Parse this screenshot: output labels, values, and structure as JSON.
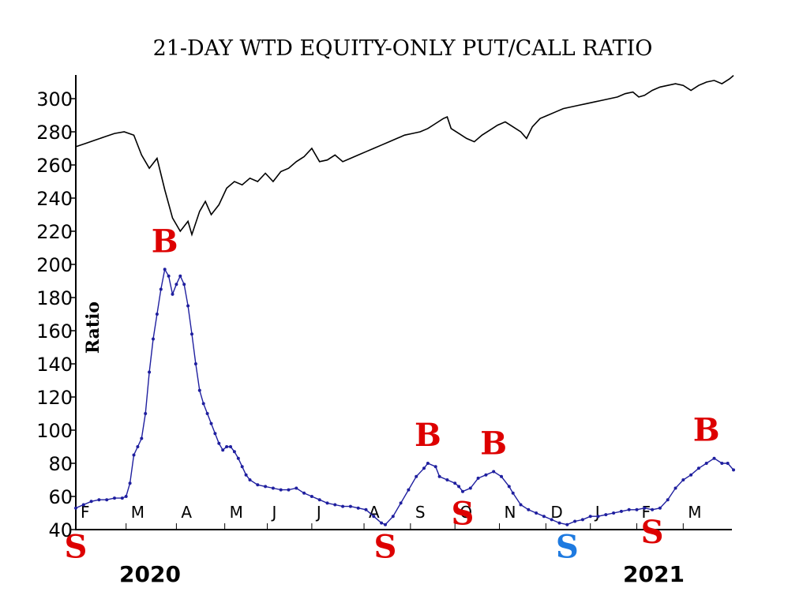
{
  "chart_data": {
    "type": "line",
    "title": "21-DAY WTD EQUITY-ONLY PUT/CALL RATIO",
    "ylabel": "Ratio",
    "ylim": [
      40,
      310
    ],
    "y_ticks": [
      40,
      60,
      80,
      100,
      120,
      140,
      160,
      180,
      200,
      220,
      240,
      260,
      280,
      300
    ],
    "y_tick_labels": [
      "40",
      "60",
      "80",
      "100",
      "120",
      "140",
      "160",
      "180",
      "200",
      "220",
      "240",
      "260",
      "280",
      "300"
    ],
    "x_month_labels": [
      "F",
      "M",
      "A",
      "M",
      "J",
      "J",
      "A",
      "S",
      "O",
      "N",
      "D",
      "J",
      "F",
      "M"
    ],
    "x_year_labels": [
      "2020",
      "2021"
    ],
    "grid": false,
    "series": [
      {
        "color": "#000000",
        "style": "line",
        "points": [
          [
            0,
            271
          ],
          [
            5,
            273
          ],
          [
            10,
            275
          ],
          [
            15,
            277
          ],
          [
            20,
            279
          ],
          [
            25,
            280
          ],
          [
            30,
            278
          ],
          [
            34,
            266
          ],
          [
            38,
            258
          ],
          [
            42,
            264
          ],
          [
            46,
            245
          ],
          [
            50,
            228
          ],
          [
            54,
            220
          ],
          [
            58,
            226
          ],
          [
            60,
            218
          ],
          [
            64,
            232
          ],
          [
            67,
            238
          ],
          [
            70,
            230
          ],
          [
            74,
            236
          ],
          [
            78,
            246
          ],
          [
            82,
            250
          ],
          [
            86,
            248
          ],
          [
            90,
            252
          ],
          [
            94,
            250
          ],
          [
            98,
            255
          ],
          [
            102,
            250
          ],
          [
            106,
            256
          ],
          [
            110,
            258
          ],
          [
            114,
            262
          ],
          [
            118,
            265
          ],
          [
            122,
            270
          ],
          [
            126,
            262
          ],
          [
            130,
            263
          ],
          [
            134,
            266
          ],
          [
            138,
            262
          ],
          [
            142,
            264
          ],
          [
            146,
            266
          ],
          [
            150,
            268
          ],
          [
            154,
            270
          ],
          [
            158,
            272
          ],
          [
            162,
            274
          ],
          [
            166,
            276
          ],
          [
            170,
            278
          ],
          [
            174,
            279
          ],
          [
            178,
            280
          ],
          [
            182,
            282
          ],
          [
            186,
            285
          ],
          [
            190,
            288
          ],
          [
            192,
            289
          ],
          [
            194,
            282
          ],
          [
            198,
            279
          ],
          [
            202,
            276
          ],
          [
            206,
            274
          ],
          [
            210,
            278
          ],
          [
            214,
            281
          ],
          [
            218,
            284
          ],
          [
            222,
            286
          ],
          [
            226,
            283
          ],
          [
            230,
            280
          ],
          [
            233,
            276
          ],
          [
            236,
            283
          ],
          [
            240,
            288
          ],
          [
            244,
            290
          ],
          [
            248,
            292
          ],
          [
            252,
            294
          ],
          [
            256,
            295
          ],
          [
            260,
            296
          ],
          [
            264,
            297
          ],
          [
            268,
            298
          ],
          [
            272,
            299
          ],
          [
            276,
            300
          ],
          [
            280,
            301
          ],
          [
            284,
            303
          ],
          [
            288,
            304
          ],
          [
            291,
            301
          ],
          [
            294,
            302
          ],
          [
            298,
            305
          ],
          [
            302,
            307
          ],
          [
            306,
            308
          ],
          [
            310,
            309
          ],
          [
            314,
            308
          ],
          [
            318,
            305
          ],
          [
            322,
            308
          ],
          [
            326,
            310
          ],
          [
            330,
            311
          ],
          [
            334,
            309
          ],
          [
            338,
            312
          ],
          [
            340,
            314
          ]
        ]
      },
      {
        "color": "#1f1f9f",
        "style": "dotted-line",
        "points": [
          [
            0,
            53
          ],
          [
            4,
            55
          ],
          [
            8,
            57
          ],
          [
            12,
            58
          ],
          [
            16,
            58
          ],
          [
            20,
            59
          ],
          [
            24,
            59
          ],
          [
            26,
            60
          ],
          [
            28,
            68
          ],
          [
            30,
            85
          ],
          [
            32,
            90
          ],
          [
            34,
            95
          ],
          [
            36,
            110
          ],
          [
            38,
            135
          ],
          [
            40,
            155
          ],
          [
            42,
            170
          ],
          [
            44,
            185
          ],
          [
            46,
            197
          ],
          [
            48,
            193
          ],
          [
            50,
            182
          ],
          [
            52,
            188
          ],
          [
            54,
            193
          ],
          [
            56,
            188
          ],
          [
            58,
            175
          ],
          [
            60,
            158
          ],
          [
            62,
            140
          ],
          [
            64,
            124
          ],
          [
            66,
            116
          ],
          [
            68,
            110
          ],
          [
            70,
            104
          ],
          [
            72,
            98
          ],
          [
            74,
            92
          ],
          [
            76,
            88
          ],
          [
            78,
            90
          ],
          [
            80,
            90
          ],
          [
            82,
            87
          ],
          [
            84,
            83
          ],
          [
            86,
            78
          ],
          [
            88,
            73
          ],
          [
            90,
            70
          ],
          [
            94,
            67
          ],
          [
            98,
            66
          ],
          [
            102,
            65
          ],
          [
            106,
            64
          ],
          [
            110,
            64
          ],
          [
            114,
            65
          ],
          [
            118,
            62
          ],
          [
            122,
            60
          ],
          [
            126,
            58
          ],
          [
            130,
            56
          ],
          [
            134,
            55
          ],
          [
            138,
            54
          ],
          [
            142,
            54
          ],
          [
            146,
            53
          ],
          [
            150,
            52
          ],
          [
            154,
            48
          ],
          [
            158,
            44
          ],
          [
            160,
            43
          ],
          [
            164,
            48
          ],
          [
            168,
            56
          ],
          [
            172,
            64
          ],
          [
            176,
            72
          ],
          [
            180,
            77
          ],
          [
            182,
            80
          ],
          [
            186,
            78
          ],
          [
            188,
            72
          ],
          [
            192,
            70
          ],
          [
            196,
            68
          ],
          [
            198,
            66
          ],
          [
            200,
            63
          ],
          [
            204,
            65
          ],
          [
            208,
            71
          ],
          [
            212,
            73
          ],
          [
            216,
            75
          ],
          [
            220,
            72
          ],
          [
            224,
            66
          ],
          [
            226,
            62
          ],
          [
            230,
            55
          ],
          [
            234,
            52
          ],
          [
            238,
            50
          ],
          [
            242,
            48
          ],
          [
            246,
            46
          ],
          [
            250,
            44
          ],
          [
            254,
            43
          ],
          [
            258,
            45
          ],
          [
            262,
            46
          ],
          [
            266,
            48
          ],
          [
            270,
            48
          ],
          [
            274,
            49
          ],
          [
            278,
            50
          ],
          [
            282,
            51
          ],
          [
            286,
            52
          ],
          [
            290,
            52
          ],
          [
            294,
            53
          ],
          [
            298,
            52
          ],
          [
            302,
            53
          ],
          [
            306,
            58
          ],
          [
            310,
            65
          ],
          [
            314,
            70
          ],
          [
            318,
            73
          ],
          [
            322,
            77
          ],
          [
            326,
            80
          ],
          [
            330,
            83
          ],
          [
            334,
            80
          ],
          [
            337,
            80
          ],
          [
            340,
            76
          ]
        ]
      }
    ],
    "signals": [
      {
        "label": "S",
        "color": "#dd0000",
        "x": 0,
        "y": 43
      },
      {
        "label": "B",
        "color": "#dd0000",
        "x": 46,
        "y": 197
      },
      {
        "label": "S",
        "color": "#dd0000",
        "x": 160,
        "y": 43
      },
      {
        "label": "B",
        "color": "#dd0000",
        "x": 182,
        "y": 80
      },
      {
        "label": "S",
        "color": "#dd0000",
        "x": 200,
        "y": 63
      },
      {
        "label": "B",
        "color": "#dd0000",
        "x": 216,
        "y": 75
      },
      {
        "label": "S",
        "color": "#1e7ae0",
        "x": 254,
        "y": 43
      },
      {
        "label": "S",
        "color": "#dd0000",
        "x": 298,
        "y": 52
      },
      {
        "label": "B",
        "color": "#dd0000",
        "x": 326,
        "y": 83
      }
    ]
  }
}
